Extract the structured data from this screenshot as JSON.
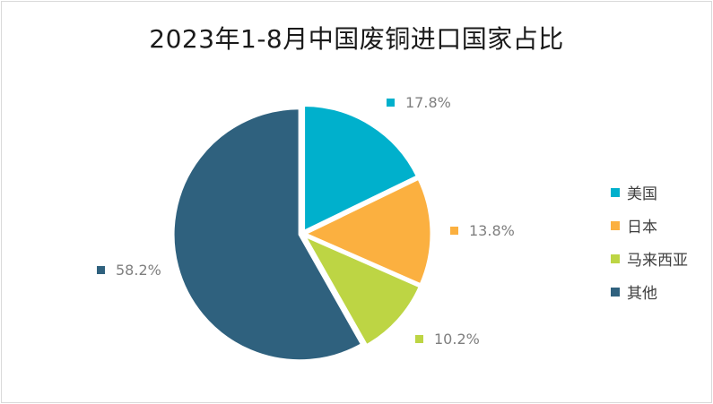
{
  "chart_data": {
    "type": "pie",
    "title": "2023年1-8月中国废铜进口国家占比",
    "slices": [
      {
        "name": "美国",
        "value": 17.8,
        "label": "17.8%",
        "color": "#00b0cc"
      },
      {
        "name": "日本",
        "value": 13.8,
        "label": "13.8%",
        "color": "#fbb040"
      },
      {
        "name": "马来西亚",
        "value": 10.2,
        "label": "10.2%",
        "color": "#bdd544"
      },
      {
        "name": "其他",
        "value": 58.2,
        "label": "58.2%",
        "color": "#2f617e"
      }
    ],
    "legend_position": "right"
  }
}
